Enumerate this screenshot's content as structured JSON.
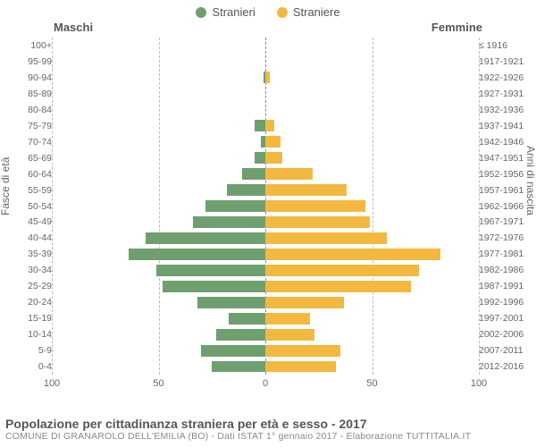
{
  "legend": {
    "male": {
      "label": "Stranieri",
      "color": "#6f9f6f"
    },
    "female": {
      "label": "Straniere",
      "color": "#f2b840"
    }
  },
  "header": {
    "left": "Maschi",
    "right": "Femmine"
  },
  "yaxis_left_title": "Fasce di età",
  "yaxis_right_title": "Anni di nascita",
  "footer": {
    "title": "Popolazione per cittadinanza straniera per età e sesso - 2017",
    "subtitle": "COMUNE DI GRANAROLO DELL'EMILIA (BO) - Dati ISTAT 1° gennaio 2017 - Elaborazione TUTTITALIA.IT"
  },
  "chart": {
    "type": "population-pyramid",
    "xmax": 100,
    "xticks_left": [
      100,
      50,
      0
    ],
    "xticks_right": [
      50,
      100
    ],
    "grid_color": "#bbbbbb",
    "center_color": "#888888",
    "background": "#ffffff",
    "label_fontsize": 10.5,
    "data": [
      {
        "age": "100+",
        "birth": "≤ 1916",
        "m": 0,
        "f": 0
      },
      {
        "age": "95-99",
        "birth": "1917-1921",
        "m": 0,
        "f": 0
      },
      {
        "age": "90-94",
        "birth": "1922-1926",
        "m": 1,
        "f": 2
      },
      {
        "age": "85-89",
        "birth": "1927-1931",
        "m": 0,
        "f": 0
      },
      {
        "age": "80-84",
        "birth": "1932-1936",
        "m": 0,
        "f": 0
      },
      {
        "age": "75-79",
        "birth": "1937-1941",
        "m": 5,
        "f": 4
      },
      {
        "age": "70-74",
        "birth": "1942-1946",
        "m": 2,
        "f": 7
      },
      {
        "age": "65-69",
        "birth": "1947-1951",
        "m": 5,
        "f": 8
      },
      {
        "age": "60-64",
        "birth": "1952-1956",
        "m": 11,
        "f": 22
      },
      {
        "age": "55-59",
        "birth": "1957-1961",
        "m": 18,
        "f": 38
      },
      {
        "age": "50-54",
        "birth": "1962-1966",
        "m": 28,
        "f": 47
      },
      {
        "age": "45-49",
        "birth": "1967-1971",
        "m": 34,
        "f": 49
      },
      {
        "age": "40-44",
        "birth": "1972-1976",
        "m": 56,
        "f": 57
      },
      {
        "age": "35-39",
        "birth": "1977-1981",
        "m": 64,
        "f": 82
      },
      {
        "age": "30-34",
        "birth": "1982-1986",
        "m": 51,
        "f": 72
      },
      {
        "age": "25-29",
        "birth": "1987-1991",
        "m": 48,
        "f": 68
      },
      {
        "age": "20-24",
        "birth": "1992-1996",
        "m": 32,
        "f": 37
      },
      {
        "age": "15-19",
        "birth": "1997-2001",
        "m": 17,
        "f": 21
      },
      {
        "age": "10-14",
        "birth": "2002-2006",
        "m": 23,
        "f": 23
      },
      {
        "age": "5-9",
        "birth": "2007-2011",
        "m": 30,
        "f": 35
      },
      {
        "age": "0-4",
        "birth": "2012-2016",
        "m": 25,
        "f": 33
      }
    ]
  }
}
